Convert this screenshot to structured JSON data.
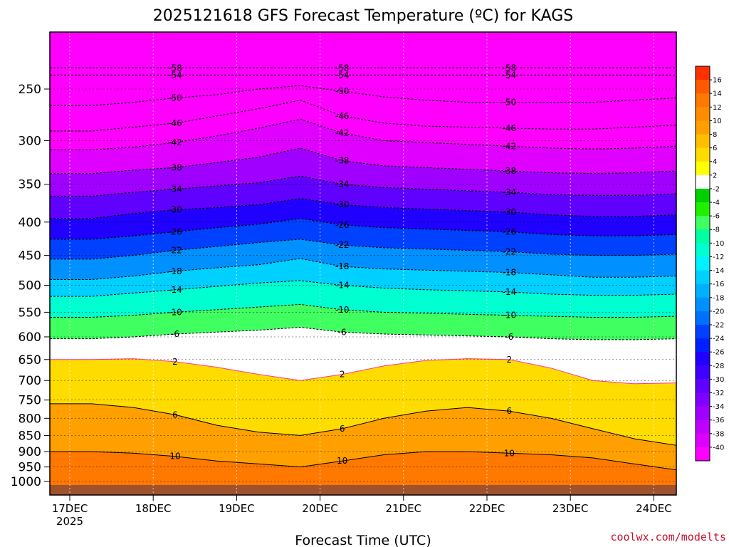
{
  "title": "2025121618 GFS Forecast Temperature (ºC) for KAGS",
  "xlabel": "Forecast Time (UTC)",
  "credit": "coolwx.com/modelts",
  "year_label": "2025",
  "chart_data": {
    "type": "heatmap",
    "title": "2025121618 GFS Forecast Temperature (ºC) for KAGS",
    "xlabel": "Forecast Time (UTC)",
    "ylabel": "",
    "x_ticks": [
      "17DEC",
      "18DEC",
      "19DEC",
      "20DEC",
      "21DEC",
      "22DEC",
      "23DEC",
      "24DEC"
    ],
    "x_range_days": [
      0,
      7.5
    ],
    "y_ticks": [
      250,
      300,
      350,
      400,
      450,
      500,
      550,
      600,
      650,
      700,
      750,
      800,
      850,
      900,
      950,
      1000
    ],
    "y_range_hpa": [
      200,
      1050
    ],
    "y_scale": "log",
    "units": "ºC",
    "colorbar": {
      "labels": [
        16,
        14,
        12,
        10,
        8,
        6,
        4,
        2,
        -2,
        -4,
        -6,
        -8,
        -10,
        -12,
        -14,
        -16,
        -18,
        -20,
        -22,
        -24,
        -26,
        -28,
        -30,
        -32,
        -34,
        -36,
        -38,
        -40
      ],
      "colors": [
        "#ff3000",
        "#ff5a00",
        "#ff7800",
        "#ff8c00",
        "#ffa000",
        "#ffbe00",
        "#ffdc00",
        "#ffff00",
        "#ffffff",
        "#00d000",
        "#20f000",
        "#40ff60",
        "#00ffa0",
        "#00ffd0",
        "#00f0ff",
        "#00d0ff",
        "#00b0ff",
        "#0090ff",
        "#0070ff",
        "#0040ff",
        "#0020ff",
        "#2000ff",
        "#4000ff",
        "#6000ff",
        "#8000ff",
        "#a000ff",
        "#c000ff",
        "#e000ff",
        "#ff00ff"
      ]
    },
    "isotherms": [
      {
        "value": -58,
        "p": [
          232,
          232,
          232,
          232,
          232,
          232,
          232,
          232,
          232,
          232,
          232,
          232,
          232,
          232,
          232,
          232
        ]
      },
      {
        "value": -54,
        "p": [
          238,
          238,
          238,
          238,
          238,
          238,
          238,
          238,
          238,
          238,
          238,
          238,
          238,
          238,
          238,
          238
        ]
      },
      {
        "value": -50,
        "p": [
          265,
          265,
          262,
          258,
          255,
          250,
          247,
          252,
          257,
          260,
          262,
          262,
          262,
          262,
          260,
          258
        ]
      },
      {
        "value": -46,
        "p": [
          290,
          290,
          286,
          282,
          275,
          268,
          260,
          275,
          282,
          285,
          286,
          287,
          288,
          288,
          286,
          284
        ]
      },
      {
        "value": -42,
        "p": [
          310,
          310,
          307,
          302,
          295,
          287,
          278,
          292,
          300,
          302,
          304,
          306,
          308,
          309,
          308,
          306
        ]
      },
      {
        "value": -38,
        "p": [
          337,
          337,
          333,
          330,
          324,
          318,
          308,
          322,
          328,
          330,
          332,
          334,
          336,
          337,
          336,
          334
        ]
      },
      {
        "value": -34,
        "p": [
          365,
          365,
          360,
          356,
          352,
          348,
          340,
          350,
          354,
          356,
          358,
          360,
          363,
          364,
          364,
          362
        ]
      },
      {
        "value": -30,
        "p": [
          395,
          395,
          388,
          383,
          380,
          376,
          368,
          376,
          380,
          382,
          384,
          386,
          390,
          392,
          392,
          390
        ]
      },
      {
        "value": -26,
        "p": [
          425,
          425,
          420,
          414,
          408,
          403,
          395,
          404,
          408,
          410,
          412,
          414,
          418,
          420,
          420,
          418
        ]
      },
      {
        "value": -22,
        "p": [
          456,
          456,
          450,
          442,
          436,
          430,
          425,
          434,
          438,
          440,
          442,
          444,
          448,
          450,
          450,
          448
        ]
      },
      {
        "value": -18,
        "p": [
          490,
          490,
          484,
          476,
          470,
          465,
          455,
          468,
          472,
          474,
          476,
          478,
          482,
          486,
          486,
          484
        ]
      },
      {
        "value": -14,
        "p": [
          520,
          520,
          514,
          508,
          502,
          496,
          492,
          500,
          505,
          508,
          510,
          512,
          516,
          518,
          518,
          516
        ]
      },
      {
        "value": -10,
        "p": [
          560,
          560,
          556,
          550,
          545,
          540,
          535,
          545,
          550,
          552,
          554,
          556,
          558,
          560,
          560,
          558
        ]
      },
      {
        "value": -6,
        "p": [
          604,
          604,
          600,
          594,
          590,
          586,
          580,
          590,
          594,
          596,
          598,
          600,
          604,
          606,
          606,
          604
        ]
      },
      {
        "value": 2,
        "p": [
          650,
          650,
          648,
          655,
          668,
          685,
          700,
          685,
          665,
          652,
          648,
          650,
          670,
          700,
          708,
          706
        ]
      },
      {
        "value": 6,
        "p": [
          760,
          760,
          770,
          790,
          820,
          840,
          850,
          830,
          800,
          780,
          770,
          780,
          800,
          830,
          860,
          880
        ]
      },
      {
        "value": 10,
        "p": [
          900,
          900,
          905,
          915,
          930,
          940,
          950,
          930,
          910,
          900,
          900,
          905,
          910,
          920,
          940,
          960
        ]
      }
    ]
  }
}
